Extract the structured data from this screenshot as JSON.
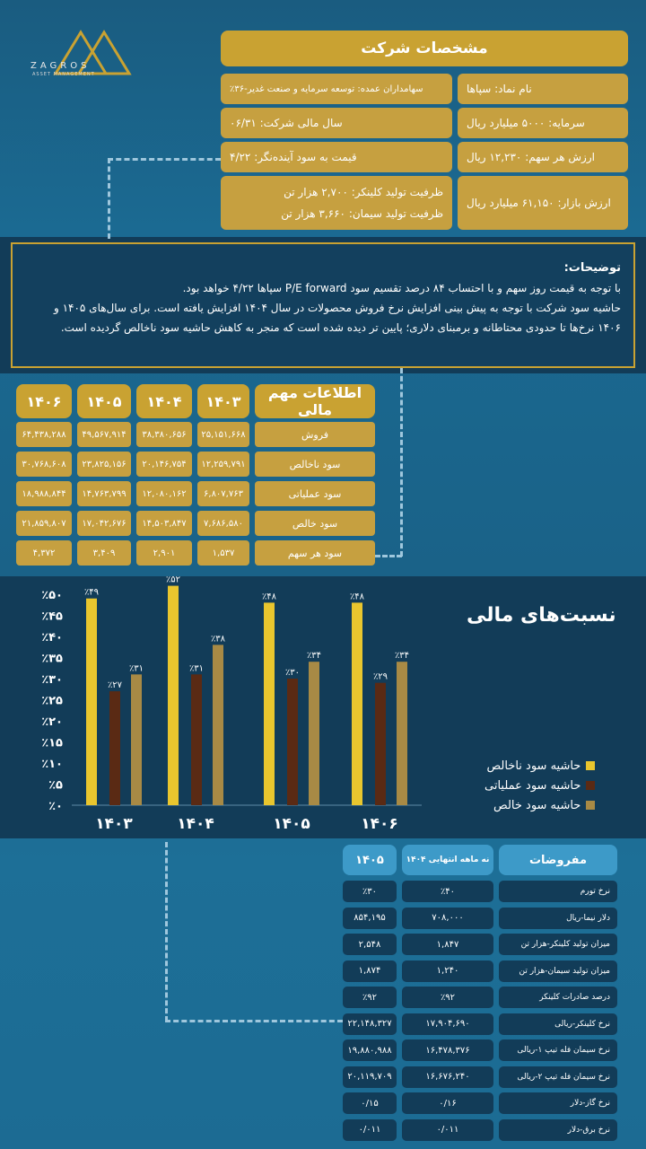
{
  "logo": {
    "name": "ZAGROS",
    "sub": "ASSET MANAGEMENT"
  },
  "spec": {
    "title": "مشخصات شرکت",
    "symbol": "نام نماد: سپاها",
    "shareholders": "سهامداران عمده: توسعه سرمایه و صنعت غدیر-۳۶٪",
    "capital": "سرمایه: ۵۰۰۰ میلیارد ریال",
    "fiscal_year": "سال مالی شرکت: ۰۶/۳۱",
    "share_value": "ارزش هر سهم: ۱۲,۲۳۰ ریال",
    "pe": "قیمت به سود آینده‌نگر: ۴/۲۲",
    "market_value": "ارزش بازار: ۶۱,۱۵۰ میلیارد ریال",
    "clinker_capacity": "ظرفیت تولید کلینکر: ۲,۷۰۰ هزار تن",
    "cement_capacity": "ظرفیت تولید سیمان: ۳,۶۶۰ هزار تن"
  },
  "note": {
    "title": "توضیحات:",
    "line1": "با توجه به قیمت روز سهم و با احتساب ۸۴ درصد تقسیم سود P/E forward سپاها ۴/۲۲ خواهد بود.",
    "line2": "حاشیه سود شرکت با توجه به پیش بینی افزایش نرخ فروش محصولات در سال ۱۴۰۴ افزایش یافته است. برای سال‌های ۱۴۰۵ و",
    "line3": "۱۴۰۶ نرخ‌ها تا حدودی محتاطانه و برمبنای دلاری؛ پایین تر دیده شده است که منجر به کاهش حاشیه سود ناخالص گردیده است."
  },
  "fin": {
    "header": "اطلاعات مهم مالی",
    "years": [
      "۱۴۰۳",
      "۱۴۰۴",
      "۱۴۰۵",
      "۱۴۰۶"
    ],
    "rows": [
      {
        "label": "فروش",
        "values": [
          "۲۵,۱۵۱,۶۶۸",
          "۳۸,۳۸۰,۶۵۶",
          "۴۹,۵۶۷,۹۱۴",
          "۶۴,۴۳۸,۲۸۸"
        ]
      },
      {
        "label": "سود ناخالص",
        "values": [
          "۱۲,۲۵۹,۷۹۱",
          "۲۰,۱۴۶,۷۵۴",
          "۲۳,۸۲۵,۱۵۶",
          "۳۰,۷۶۸,۶۰۸"
        ]
      },
      {
        "label": "سود عملیاتی",
        "values": [
          "۶,۸۰۷,۷۶۳",
          "۱۲,۰۸۰,۱۶۲",
          "۱۴,۷۶۳,۷۹۹",
          "۱۸,۹۸۸,۸۴۴"
        ]
      },
      {
        "label": "سود خالص",
        "values": [
          "۷,۶۸۶,۵۸۰",
          "۱۴,۵۰۳,۸۴۷",
          "۱۷,۰۴۲,۶۷۶",
          "۲۱,۸۵۹,۸۰۷"
        ]
      },
      {
        "label": "سود هر سهم",
        "values": [
          "۱,۵۳۷",
          "۲,۹۰۱",
          "۳,۴۰۹",
          "۴,۳۷۲"
        ]
      }
    ]
  },
  "chart_title": "نسبت‌های مالی",
  "colors": {
    "gross": "#e9c62e",
    "operating": "#5a2a14",
    "net": "#a88a45"
  },
  "chart_data": {
    "type": "bar",
    "categories": [
      "۱۴۰۳",
      "۱۴۰۴",
      "۱۴۰۵",
      "۱۴۰۶"
    ],
    "series": [
      {
        "name": "حاشیه سود ناخالص",
        "values": [
          49,
          52,
          48,
          48
        ],
        "labels": [
          "٪۴۹",
          "٪۵۲",
          "٪۴۸",
          "٪۴۸"
        ]
      },
      {
        "name": "حاشیه سود عملیاتی",
        "values": [
          27,
          31,
          30,
          29
        ],
        "labels": [
          "٪۲۷",
          "٪۳۱",
          "٪۳۰",
          "٪۲۹"
        ]
      },
      {
        "name": "حاشیه سود خالص",
        "values": [
          31,
          38,
          34,
          34
        ],
        "labels": [
          "٪۳۱",
          "٪۳۸",
          "٪۳۴",
          "٪۳۴"
        ]
      }
    ],
    "yticks": [
      "٪۰",
      "٪۵",
      "٪۱۰",
      "٪۱۵",
      "٪۲۰",
      "٪۲۵",
      "٪۳۰",
      "٪۳۵",
      "٪۴۰",
      "٪۴۵",
      "٪۵۰"
    ],
    "ylim": [
      0,
      50
    ],
    "legend": "right"
  },
  "assump": {
    "header": "مفروضات",
    "col1": "نه ماهه انتهایی ۱۴۰۴",
    "col2": "۱۴۰۵",
    "rows": [
      {
        "label": "نرخ تورم",
        "v1": "٪۴۰",
        "v2": "٪۳۰"
      },
      {
        "label": "دلار نیما-ریال",
        "v1": "۷۰۸,۰۰۰",
        "v2": "۸۵۴,۱۹۵"
      },
      {
        "label": "میزان تولید کلینکر-هزار تن",
        "v1": "۱,۸۴۷",
        "v2": "۲,۵۴۸"
      },
      {
        "label": "میزان تولید سیمان-هزار تن",
        "v1": "۱,۲۴۰",
        "v2": "۱,۸۷۴"
      },
      {
        "label": "درصد صادرات کلینکر",
        "v1": "٪۹۲",
        "v2": "٪۹۲"
      },
      {
        "label": "نرخ کلینکر-ریالی",
        "v1": "۱۷,۹۰۴,۶۹۰",
        "v2": "۲۲,۱۴۸,۳۲۷"
      },
      {
        "label": "نرخ سیمان فله تیپ ۱-ریالی",
        "v1": "۱۶,۴۷۸,۳۷۶",
        "v2": "۱۹,۸۸۰,۹۸۸"
      },
      {
        "label": "نرخ سیمان فله تیپ ۲-ریالی",
        "v1": "۱۶,۶۷۶,۲۴۰",
        "v2": "۲۰,۱۱۹,۷۰۹"
      },
      {
        "label": "نرخ گاز-دلار",
        "v1": "۰/۱۶",
        "v2": "۰/۱۵"
      },
      {
        "label": "نرخ برق-دلار",
        "v1": "۰/۰۱۱",
        "v2": "۰/۰۱۱"
      }
    ]
  }
}
